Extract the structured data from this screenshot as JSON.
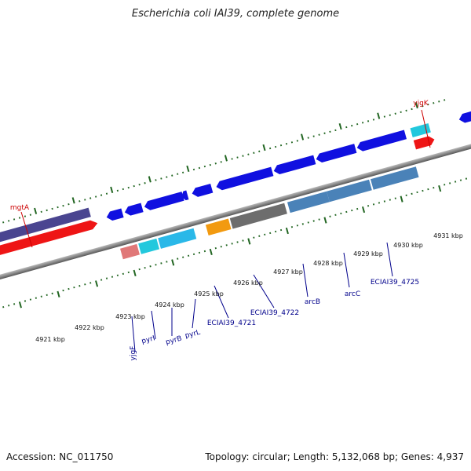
{
  "title": "Escherichia coli IAI39, complete genome",
  "footer": {
    "accession": "Accession: NC_011750",
    "stats": "Topology: circular; Length: 5,132,068 bp; Genes: 4,937"
  },
  "colors": {
    "forward_gene": "#1010e0",
    "red_cds": "#ee1515",
    "purple_block": "#4a4590",
    "cyan": "#22c8dd",
    "light_cyan": "#2ab8e8",
    "orange": "#f29a10",
    "gray": "#6d6d6d",
    "steel_blue": "#4a82b8",
    "pink": "#e07878",
    "backbone": "#8a8a8a",
    "ticks": "#226622",
    "red_label": "#cc0000",
    "blue_label": "#00008b"
  },
  "scale_labels": [
    "4921 kbp",
    "4922 kbp",
    "4923 kbp",
    "4924 kbp",
    "4925 kbp",
    "4926 kbp",
    "4927 kbp",
    "4928 kbp",
    "4929 kbp",
    "4930 kbp",
    "4931 kbp"
  ],
  "gene_labels": {
    "red": [
      "mgtA",
      "yjgK"
    ],
    "blue": [
      "yjgF",
      "pyrI",
      "pyrB",
      "pyrL",
      "ECIAI39_4721",
      "ECIAI39_4722",
      "arcB",
      "arcC",
      "ECIAI39_4725"
    ]
  }
}
